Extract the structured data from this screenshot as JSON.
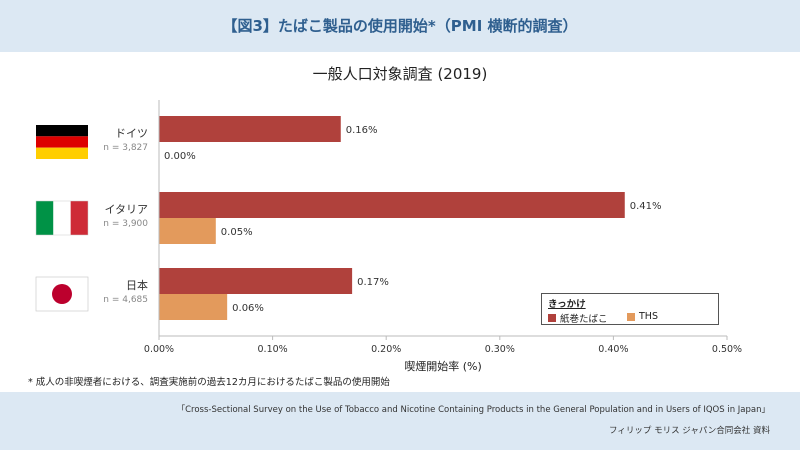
{
  "header": {
    "title": "【図3】たばこ製品の使用開始*（PMI 横断的調査）"
  },
  "chart_data": {
    "type": "bar",
    "orientation": "horizontal",
    "title": "一般人口対象調査 (2019)",
    "xlabel": "喫煙開始率 (%)",
    "xlim": [
      0,
      0.5
    ],
    "x_ticks": [
      "0.00%",
      "0.10%",
      "0.20%",
      "0.30%",
      "0.40%",
      "0.50%"
    ],
    "categories": [
      {
        "name": "ドイツ",
        "n": "n = 3,827",
        "flag": "germany-flag"
      },
      {
        "name": "イタリア",
        "n": "n = 3,900",
        "flag": "italy-flag"
      },
      {
        "name": "日本",
        "n": "n = 4,685",
        "flag": "japan-flag"
      }
    ],
    "series": [
      {
        "name": "紙巻たばこ",
        "color": "#b0413c",
        "values": [
          0.16,
          0.41,
          0.17
        ],
        "labels": [
          "0.16%",
          "0.41%",
          "0.17%"
        ]
      },
      {
        "name": "THS",
        "color": "#e39a5c",
        "values": [
          0.0,
          0.05,
          0.06
        ],
        "labels": [
          "0.00%",
          "0.05%",
          "0.06%"
        ]
      }
    ],
    "legend": {
      "title": "きっかけ",
      "position": "bottom-right"
    },
    "grid": false
  },
  "footnote": "* 成人の非喫煙者における、調査実施前の過去12カ月におけるたばこ製品の使用開始",
  "source": "「Cross-Sectional Survey on the Use of Tobacco and Nicotine Containing Products in the General Population and in Users of IQOS in Japan」",
  "credit": "フィリップ モリス ジャパン合同会社 資料"
}
